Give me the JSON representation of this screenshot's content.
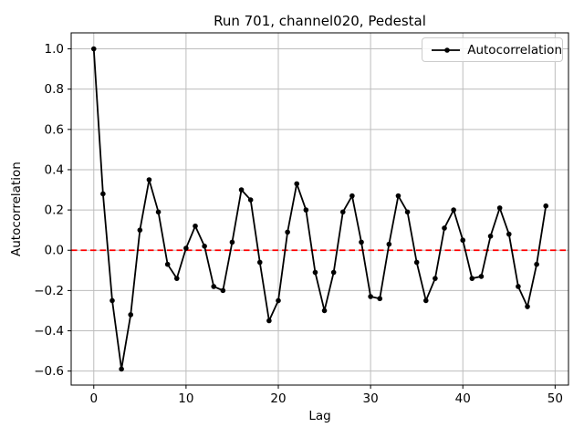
{
  "colors": {
    "line": "#000000",
    "marker": "#000000",
    "zero_line": "#ff0000",
    "grid": "#bdbdbd",
    "spine": "#000000",
    "text": "#000000",
    "background": "#ffffff",
    "legend_border": "#cccccc"
  },
  "chart_data": {
    "type": "line",
    "title": "Run 701, channel020, Pedestal",
    "xlabel": "Lag",
    "ylabel": "Autocorrelation",
    "grid": true,
    "legend_position": "upper right",
    "legend": [
      {
        "label": "Autocorrelation",
        "marker": "point",
        "color": "#000000"
      }
    ],
    "xlim": [
      -2.45,
      51.45
    ],
    "ylim": [
      -0.6695,
      1.0795
    ],
    "xticks": [
      0,
      10,
      20,
      30,
      40,
      50
    ],
    "yticks": [
      1.0,
      0.8,
      0.6,
      0.4,
      0.2,
      0.0,
      -0.2,
      -0.4,
      -0.6
    ],
    "zero_line": {
      "y": 0,
      "color": "#ff0000",
      "style": "dashed"
    },
    "x": [
      0,
      1,
      2,
      3,
      4,
      5,
      6,
      7,
      8,
      9,
      10,
      11,
      12,
      13,
      14,
      15,
      16,
      17,
      18,
      19,
      20,
      21,
      22,
      23,
      24,
      25,
      26,
      27,
      28,
      29,
      30,
      31,
      32,
      33,
      34,
      35,
      36,
      37,
      38,
      39,
      40,
      41,
      42,
      43,
      44,
      45,
      46,
      47,
      48,
      49
    ],
    "series": [
      {
        "name": "Autocorrelation",
        "color": "#000000",
        "marker": "point",
        "values": [
          1.0,
          0.28,
          -0.25,
          -0.59,
          -0.32,
          0.1,
          0.35,
          0.19,
          -0.07,
          -0.14,
          0.01,
          0.12,
          0.02,
          -0.18,
          -0.2,
          0.04,
          0.3,
          0.25,
          -0.06,
          -0.35,
          -0.25,
          0.09,
          0.33,
          0.2,
          -0.11,
          -0.3,
          -0.11,
          0.19,
          0.27,
          0.04,
          -0.23,
          -0.24,
          0.03,
          0.27,
          0.19,
          -0.06,
          -0.25,
          -0.14,
          0.11,
          0.2,
          0.05,
          -0.14,
          -0.13,
          0.07,
          0.21,
          0.08,
          -0.18,
          -0.28,
          -0.07,
          0.22
        ]
      }
    ]
  }
}
